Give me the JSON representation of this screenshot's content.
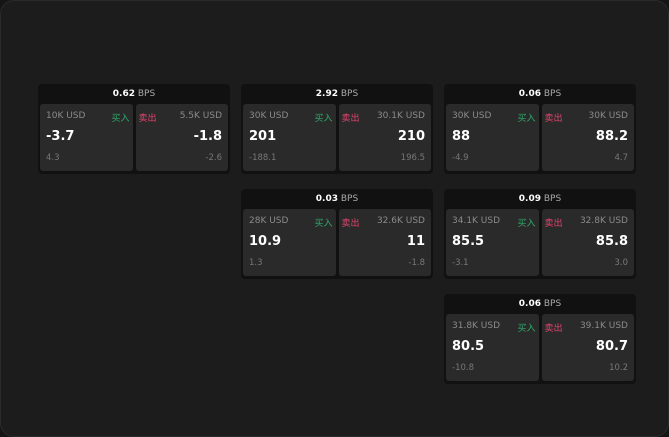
{
  "unit": "BPS",
  "buy_label": "买入",
  "sell_label": "卖出",
  "colors": {
    "buy": "#2fa96a",
    "sell": "#e0446e"
  },
  "cards": [
    {
      "spread": "0.62",
      "buy": {
        "size": "10K USD",
        "price": "-3.7",
        "change": "4.3"
      },
      "sell": {
        "size": "5.5K USD",
        "price": "-1.8",
        "change": "-2.6"
      }
    },
    {
      "spread": "2.92",
      "buy": {
        "size": "30K USD",
        "price": "201",
        "change": "-188.1"
      },
      "sell": {
        "size": "30.1K USD",
        "price": "210",
        "change": "196.5"
      }
    },
    {
      "spread": "0.06",
      "buy": {
        "size": "30K USD",
        "price": "88",
        "change": "-4.9"
      },
      "sell": {
        "size": "30K USD",
        "price": "88.2",
        "change": "4.7"
      }
    },
    {
      "spread": "0.03",
      "buy": {
        "size": "28K USD",
        "price": "10.9",
        "change": "1.3"
      },
      "sell": {
        "size": "32.6K USD",
        "price": "11",
        "change": "-1.8"
      }
    },
    {
      "spread": "0.09",
      "buy": {
        "size": "34.1K USD",
        "price": "85.5",
        "change": "-3.1"
      },
      "sell": {
        "size": "32.8K USD",
        "price": "85.8",
        "change": "3.0"
      }
    },
    {
      "spread": "0.06",
      "buy": {
        "size": "31.8K USD",
        "price": "80.5",
        "change": "-10.8"
      },
      "sell": {
        "size": "39.1K USD",
        "price": "80.7",
        "change": "10.2"
      }
    }
  ]
}
